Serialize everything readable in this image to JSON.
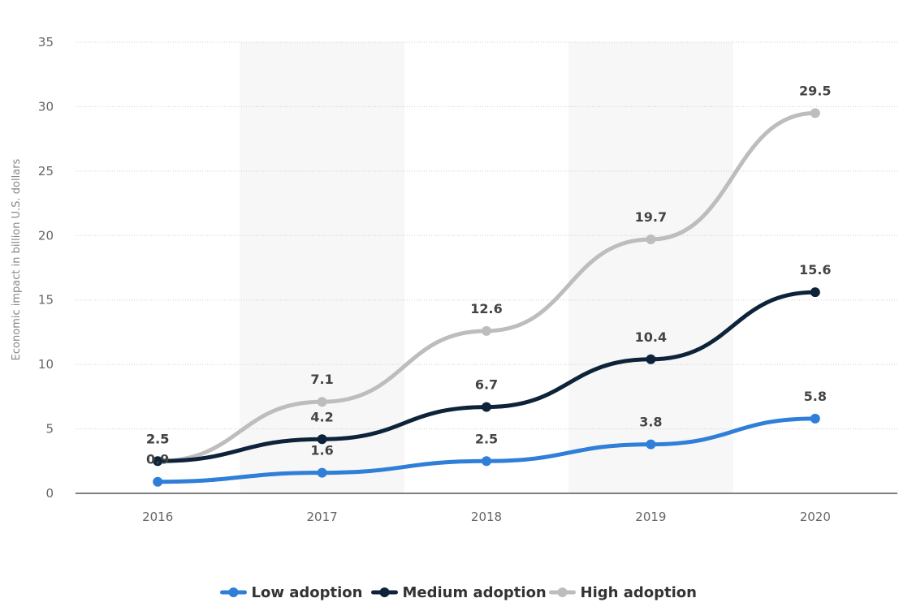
{
  "chart_data": {
    "type": "line",
    "x": [
      "2016",
      "2017",
      "2018",
      "2019",
      "2020"
    ],
    "ylabel": "Economic impact in billion U.S. dollars",
    "ylim": [
      0,
      35
    ],
    "yticks": [
      0,
      5,
      10,
      15,
      20,
      25,
      30,
      35
    ],
    "grid": true,
    "legend_position": "bottom",
    "series": [
      {
        "name": "Low adoption",
        "color": "#2f7ed8",
        "values": [
          0.9,
          1.6,
          2.5,
          3.8,
          5.8
        ]
      },
      {
        "name": "Medium adoption",
        "color": "#0d233a",
        "values": [
          2.5,
          4.2,
          6.7,
          10.4,
          15.6
        ]
      },
      {
        "name": "High adoption",
        "color": "#bdbdbd",
        "values": [
          2.5,
          7.1,
          12.6,
          19.7,
          29.5
        ]
      }
    ]
  }
}
